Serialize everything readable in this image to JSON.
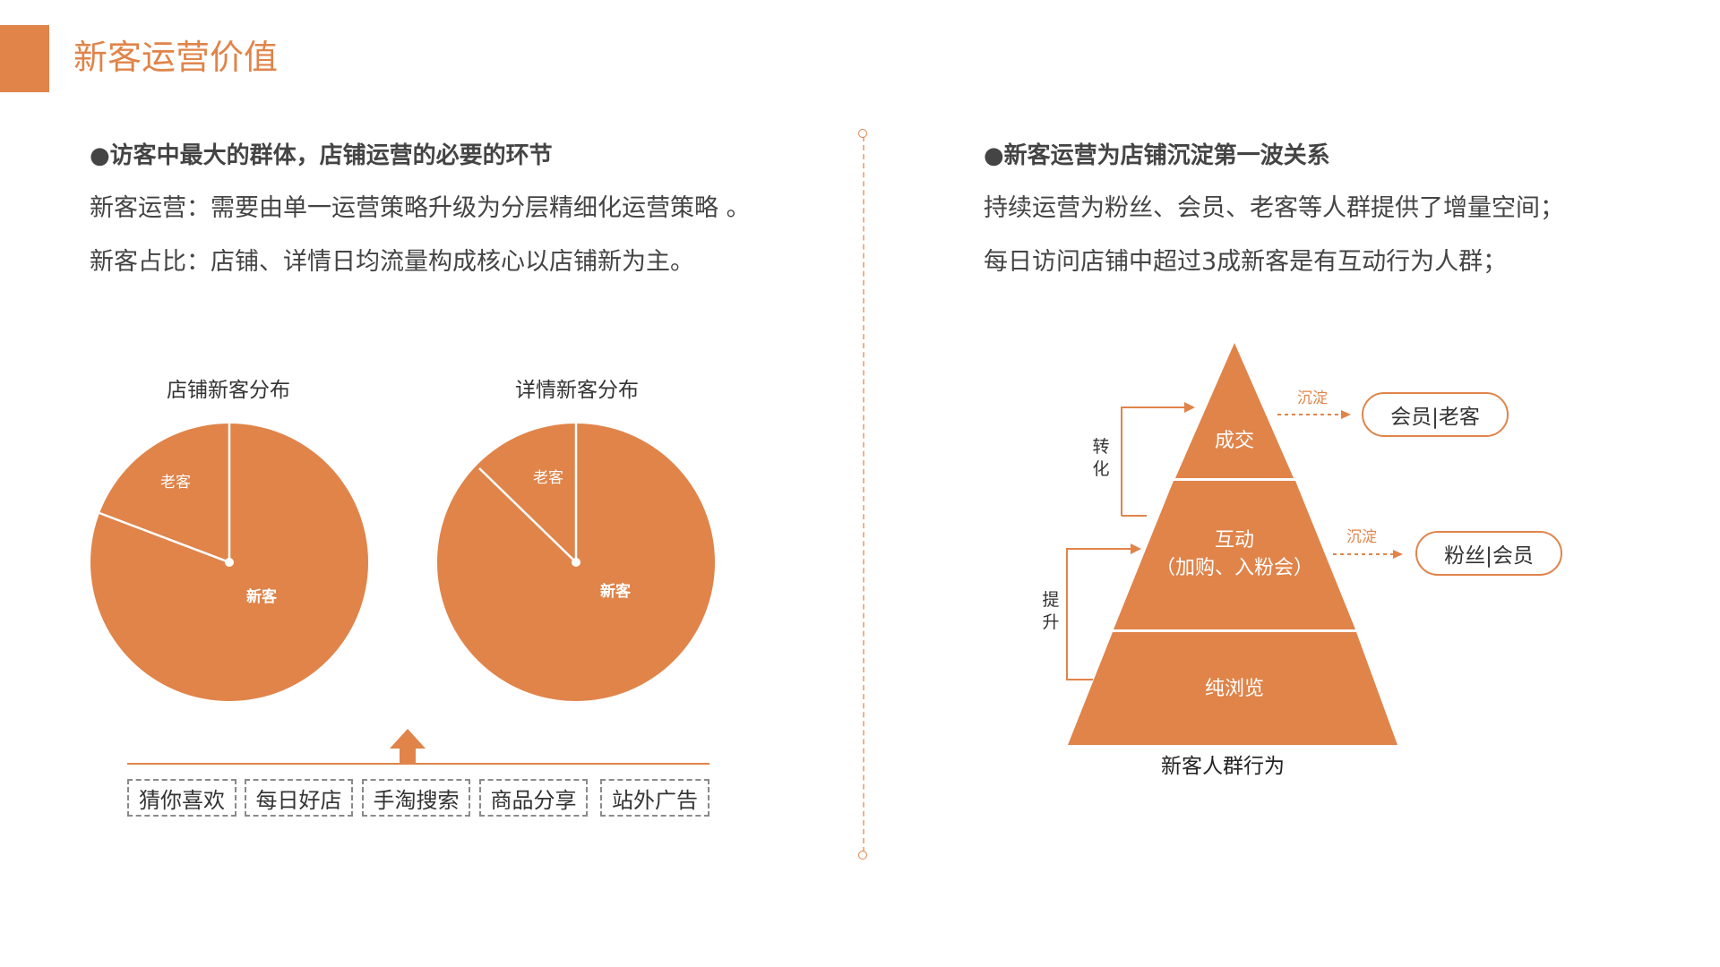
{
  "page": {
    "title": "新客运营价值"
  },
  "left": {
    "heading": "●访客中最大的群体，店铺运营的必要的环节",
    "line1": "新客运营：需要由单一运营策略升级为分层精细化运营策略 。",
    "line2": "新客占比：店铺、详情日均流量构成核心以店铺新为主。"
  },
  "right": {
    "heading": "●新客运营为店铺沉淀第一波关系",
    "line1": "持续运营为粉丝、会员、老客等人群提供了增量空间；",
    "line2": "每日访问店铺中超过3成新客是有互动行为人群；"
  },
  "charts": {
    "shop": {
      "title": "店铺新客分布",
      "old_label": "老客",
      "new_label": "新客"
    },
    "detail": {
      "title": "详情新客分布",
      "old_label": "老客",
      "new_label": "新客"
    }
  },
  "chart_data": [
    {
      "type": "pie",
      "title": "店铺新客分布",
      "labels": [
        "新客",
        "老客"
      ],
      "values": [
        84,
        16
      ],
      "start_angle_deg": 0
    },
    {
      "type": "pie",
      "title": "详情新客分布",
      "labels": [
        "新客",
        "老客"
      ],
      "values": [
        88,
        12
      ],
      "start_angle_deg": 0
    }
  ],
  "sources": [
    "猜你喜欢",
    "每日好店",
    "手淘搜索",
    "商品分享",
    "站外广告"
  ],
  "pyramid": {
    "caption": "新客人群行为",
    "top": "成交",
    "middle_line1": "互动",
    "middle_line2": "（加购、入粉会）",
    "bottom": "纯浏览",
    "arrow_left_top": "转\n化",
    "arrow_left_bottom": "提\n升",
    "settle_label_top": "沉淀",
    "settle_label_mid": "沉淀",
    "pill_top": "会员|老客",
    "pill_mid": "粉丝|会员"
  },
  "colors": {
    "accent": "#E0844A",
    "text": "#333333"
  }
}
